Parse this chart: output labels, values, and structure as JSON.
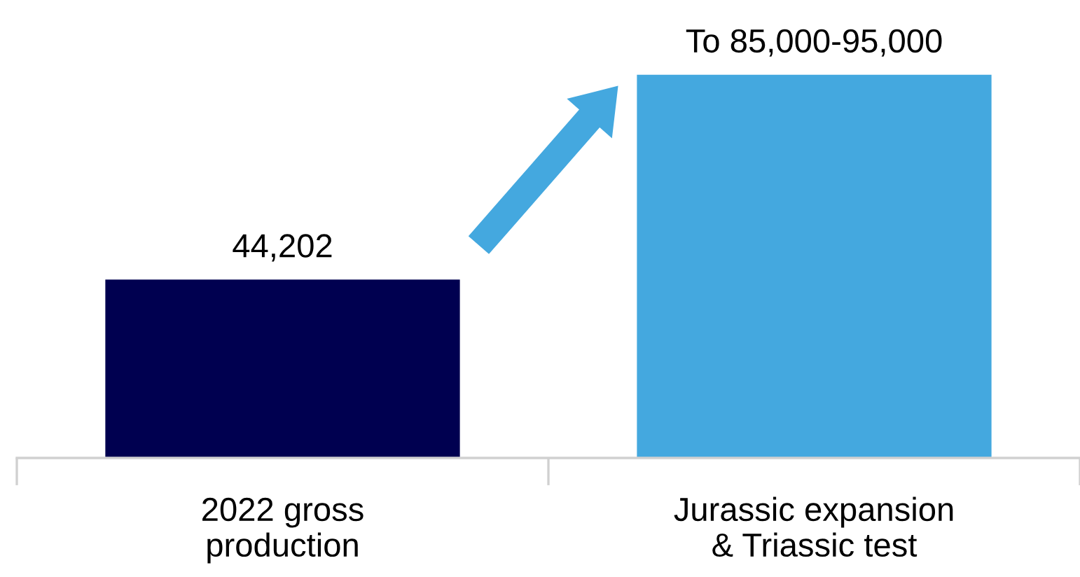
{
  "chart_data": {
    "type": "bar",
    "categories": [
      "2022 gross\nproduction",
      "Jurassic expansion\n& Triassic test"
    ],
    "values": [
      44202,
      95000
    ],
    "colors": [
      "#000050",
      "#44a8df"
    ],
    "value_labels": [
      "44,202",
      "To 85,000-95,000"
    ],
    "tick_labels": "x",
    "grid": false,
    "legend": false
  }
}
